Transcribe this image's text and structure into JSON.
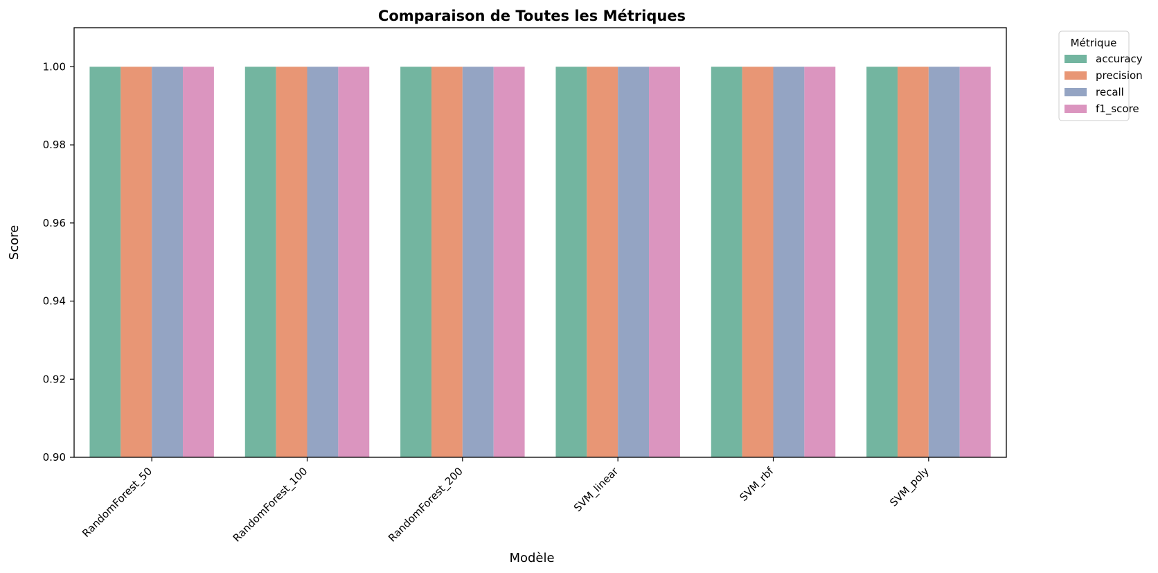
{
  "chart_data": {
    "type": "bar",
    "title": "Comparaison de Toutes les Métriques",
    "xlabel": "Modèle",
    "ylabel": "Score",
    "ylim": [
      0.9,
      1.01
    ],
    "yticks": [
      "0.90",
      "0.92",
      "0.94",
      "0.96",
      "0.98",
      "1.00"
    ],
    "ytick_values": [
      0.9,
      0.92,
      0.94,
      0.96,
      0.98,
      1.0
    ],
    "categories": [
      "RandomForest_50",
      "RandomForest_100",
      "RandomForest_200",
      "SVM_linear",
      "SVM_rbf",
      "SVM_poly"
    ],
    "legend_title": "Métrique",
    "legend_position": "outside top-right",
    "grid": false,
    "series": [
      {
        "name": "accuracy",
        "color": "#73b5a0",
        "values": [
          1.0,
          1.0,
          1.0,
          1.0,
          1.0,
          1.0
        ]
      },
      {
        "name": "precision",
        "color": "#e89675",
        "values": [
          1.0,
          1.0,
          1.0,
          1.0,
          1.0,
          1.0
        ]
      },
      {
        "name": "recall",
        "color": "#94a4c3",
        "values": [
          1.0,
          1.0,
          1.0,
          1.0,
          1.0,
          1.0
        ]
      },
      {
        "name": "f1_score",
        "color": "#db95bf",
        "values": [
          1.0,
          1.0,
          1.0,
          1.0,
          1.0,
          1.0
        ]
      }
    ]
  }
}
